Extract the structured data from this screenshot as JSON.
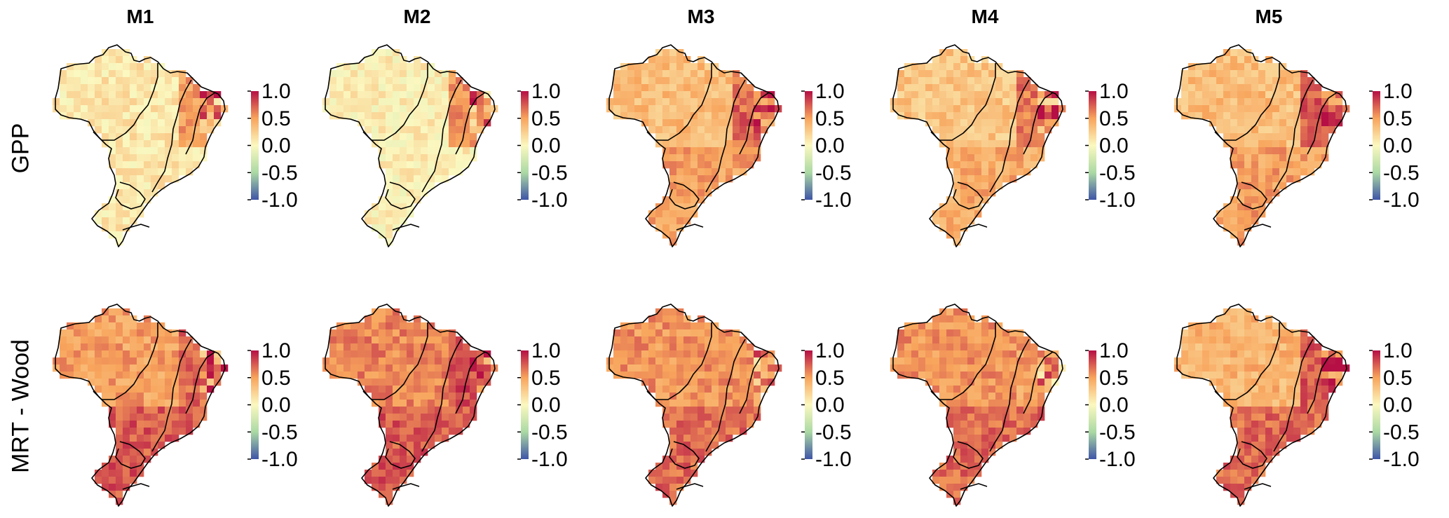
{
  "chart_data": {
    "type": "heatmap",
    "columns": [
      "M1",
      "M2",
      "M3",
      "M4",
      "M5"
    ],
    "rows": [
      "GPP",
      "MRT - Wood"
    ],
    "colorbar": {
      "ticks": [
        "1.0",
        "0.5",
        "0.0",
        "-0.5",
        "-1.0"
      ],
      "range": [
        -1.0,
        1.0
      ],
      "colormap": "Spectral_r",
      "colors": [
        "#3f55a6",
        "#abd9a4",
        "#fbf8c0",
        "#f8a45c",
        "#b50f45"
      ]
    },
    "panels": [
      {
        "row": "GPP",
        "column": "M1",
        "base_value": 0.1,
        "southeast_value": 0.1,
        "northeast_value": 0.5
      },
      {
        "row": "GPP",
        "column": "M2",
        "base_value": 0.05,
        "southeast_value": 0.05,
        "northeast_value": 0.55
      },
      {
        "row": "GPP",
        "column": "M3",
        "base_value": 0.35,
        "southeast_value": 0.5,
        "northeast_value": 0.7
      },
      {
        "row": "GPP",
        "column": "M4",
        "base_value": 0.3,
        "southeast_value": 0.45,
        "northeast_value": 0.65
      },
      {
        "row": "GPP",
        "column": "M5",
        "base_value": 0.35,
        "southeast_value": 0.5,
        "northeast_value": 0.75
      },
      {
        "row": "MRT - Wood",
        "column": "M1",
        "base_value": 0.5,
        "southeast_value": 0.75,
        "northeast_value": 0.7
      },
      {
        "row": "MRT - Wood",
        "column": "M2",
        "base_value": 0.6,
        "southeast_value": 0.75,
        "northeast_value": 0.8
      },
      {
        "row": "MRT - Wood",
        "column": "M3",
        "base_value": 0.55,
        "southeast_value": 0.7,
        "northeast_value": 0.55
      },
      {
        "row": "MRT - Wood",
        "column": "M4",
        "base_value": 0.55,
        "southeast_value": 0.7,
        "northeast_value": 0.5
      },
      {
        "row": "MRT - Wood",
        "column": "M5",
        "base_value": 0.4,
        "southeast_value": 0.7,
        "northeast_value": 0.75
      }
    ]
  }
}
